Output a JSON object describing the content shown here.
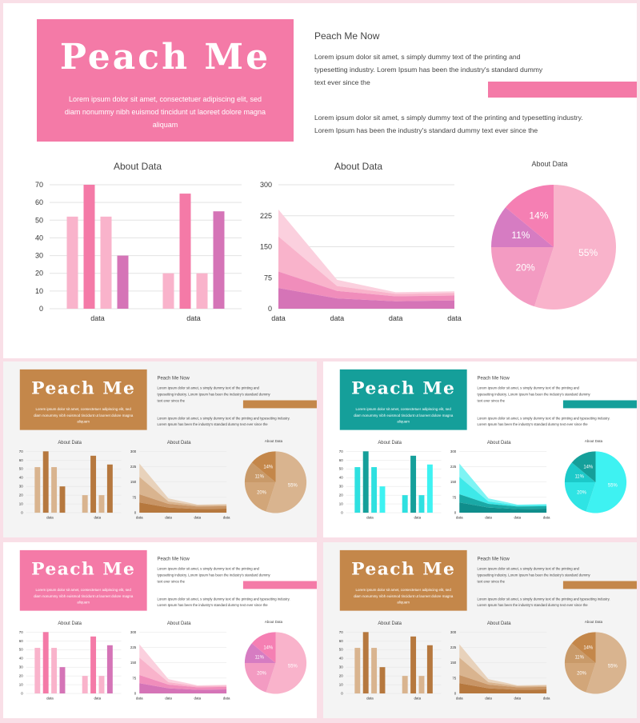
{
  "slide": {
    "brand": "Peach Me",
    "tagline": "Lorem ipsum dolor sit amet, consectetuer adipiscing elit, sed diam nonummy nibh euismod tincidunt ut laoreet dolore magna aliquam",
    "right_title": "Peach Me Now",
    "paragraph1": "Lorem ipsum dolor sit amet, s simply dummy text of the printing and typesetting industry. Lorem Ipsum has been the industry's standard dummy text ever since the",
    "paragraph2": "Lorem ipsum dolor sit amet, s simply dummy text of the printing and typesetting industry. Lorem Ipsum has been the industry's standard dummy text ever since the"
  },
  "themes": [
    {
      "name": "pink",
      "box": "#f47aa7",
      "bars": [
        "#f9b3cb",
        "#f47aa7",
        "#f9b3cb",
        "#d574b7"
      ],
      "areas": [
        "#d574b7",
        "#f08dbb",
        "#f9b3cb",
        "#fbd0de"
      ],
      "pie": [
        "#f9b3cb",
        "#f39bc2",
        "#d67cc2",
        "#f57fb3"
      ],
      "accent": "#f47aa7"
    },
    {
      "name": "brown",
      "box": "#c4874a",
      "bars": [
        "#d9b48f",
        "#b6783e",
        "#d9b48f",
        "#b6783e"
      ],
      "areas": [
        "#b6783e",
        "#c89566",
        "#d9b48f",
        "#e8d2bb"
      ],
      "pie": [
        "#d9b48f",
        "#d2a679",
        "#c99a69",
        "#c4874a"
      ],
      "accent": "#c4874a"
    },
    {
      "name": "teal",
      "box": "#159f9a",
      "bars": [
        "#2fe0e0",
        "#159f9a",
        "#2fe0e0",
        "#3ef2f2"
      ],
      "areas": [
        "#0f8e8c",
        "#1aa9a6",
        "#3ee9e9",
        "#7ef4f4"
      ],
      "pie": [
        "#3ef2f2",
        "#2fe4e4",
        "#1cc9c9",
        "#159f9a"
      ],
      "accent": "#159f9a"
    }
  ],
  "chart_data": [
    {
      "type": "bar",
      "title": "About Data",
      "categories": [
        "data",
        "data"
      ],
      "series": [
        {
          "values": [
            52,
            20
          ]
        },
        {
          "values": [
            70,
            65
          ]
        },
        {
          "values": [
            52,
            20
          ]
        },
        {
          "values": [
            30,
            55
          ]
        }
      ],
      "ylim": [
        0,
        70
      ],
      "yticks": [
        "0",
        "10",
        "20",
        "30",
        "40",
        "50",
        "60",
        "70"
      ],
      "grid": true
    },
    {
      "type": "area",
      "title": "About Data",
      "categories": [
        "data",
        "data",
        "data",
        "data"
      ],
      "series": [
        {
          "values": [
            50,
            25,
            18,
            20
          ]
        },
        {
          "values": [
            40,
            18,
            12,
            12
          ]
        },
        {
          "values": [
            85,
            12,
            6,
            6
          ]
        },
        {
          "values": [
            65,
            15,
            4,
            4
          ]
        }
      ],
      "ylim": [
        0,
        300
      ],
      "yticks": [
        "0",
        "75",
        "150",
        "225",
        "300"
      ],
      "grid": true
    },
    {
      "type": "pie",
      "title": "About Data",
      "slices": [
        {
          "label": "55%",
          "value": 55
        },
        {
          "label": "20%",
          "value": 20
        },
        {
          "label": "11%",
          "value": 11
        },
        {
          "label": "14%",
          "value": 14
        }
      ]
    }
  ]
}
